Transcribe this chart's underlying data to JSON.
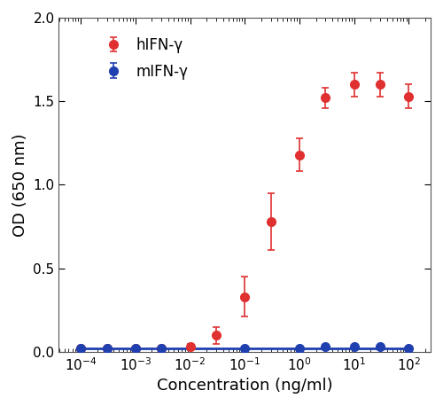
{
  "hifn_x": [
    0.0001,
    0.0003,
    0.001,
    0.003,
    0.01,
    0.03,
    0.1,
    0.3,
    1.0,
    3.0,
    10.0,
    30.0,
    100.0
  ],
  "hifn_y": [
    0.02,
    0.02,
    0.02,
    0.02,
    0.03,
    0.1,
    0.33,
    0.78,
    1.18,
    1.52,
    1.6,
    1.6,
    1.53
  ],
  "hifn_yerr": [
    0.01,
    0.01,
    0.01,
    0.01,
    0.02,
    0.05,
    0.12,
    0.17,
    0.1,
    0.06,
    0.07,
    0.07,
    0.07
  ],
  "mifn_x": [
    0.0001,
    0.0003,
    0.001,
    0.003,
    0.1,
    1.0,
    3.0,
    10.0,
    30.0,
    100.0
  ],
  "mifn_y": [
    0.02,
    0.02,
    0.02,
    0.02,
    0.02,
    0.02,
    0.03,
    0.03,
    0.03,
    0.02
  ],
  "mifn_yerr": [
    0.005,
    0.005,
    0.005,
    0.005,
    0.005,
    0.005,
    0.005,
    0.005,
    0.005,
    0.005
  ],
  "hifn_color": "#e03030",
  "mifn_color": "#2040b0",
  "hifn_label": "hIFN-γ",
  "mifn_label": "mIFN-γ",
  "xlabel": "Concentration (ng/ml)",
  "ylabel": "OD (650 nm)",
  "ylim": [
    0.0,
    2.0
  ],
  "yticks": [
    0.0,
    0.5,
    1.0,
    1.5,
    2.0
  ],
  "axis_fontsize": 13,
  "tick_fontsize": 11,
  "legend_fontsize": 12,
  "marker_size": 7,
  "line_width": 2.0,
  "capsize": 3,
  "elinewidth": 1.2,
  "background_color": "#ffffff",
  "spine_color": "#555555"
}
